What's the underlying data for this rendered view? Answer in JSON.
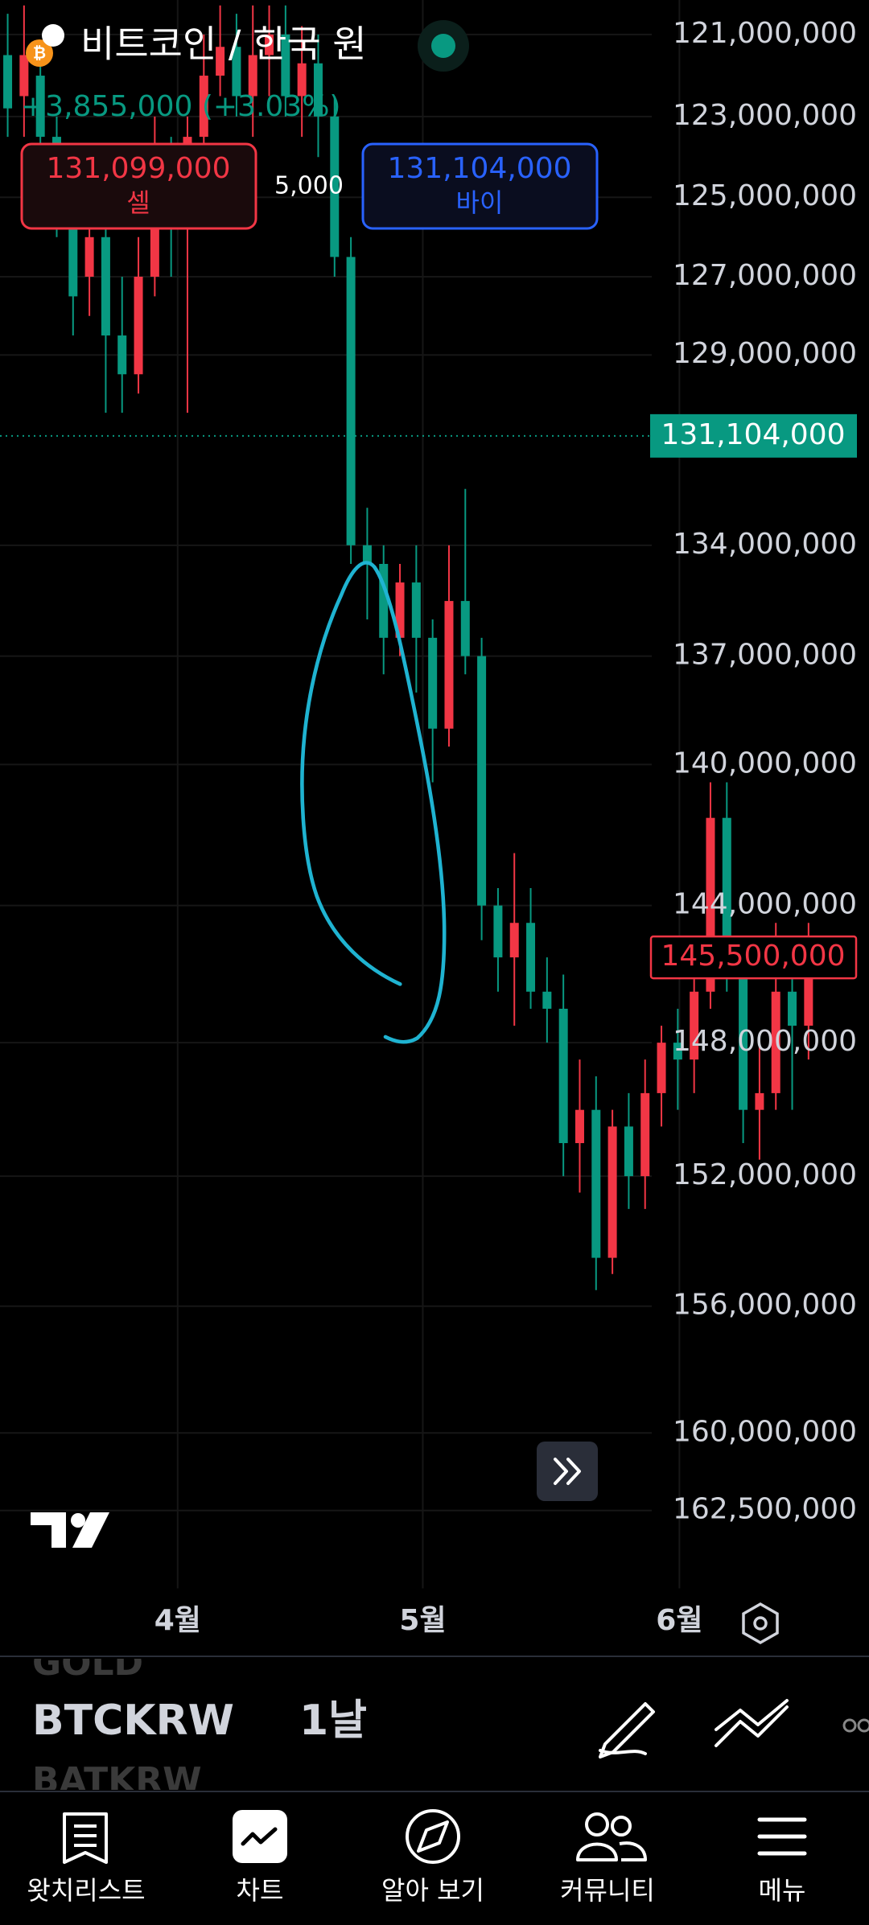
{
  "header": {
    "title": "비트코인 / 한국 원",
    "change": "+3,855,000 (+3.03%)"
  },
  "quote": {
    "sell_price": "131,099,000",
    "sell_label": "셀",
    "spread": "5,000",
    "buy_price": "131,104,000",
    "buy_label": "바이"
  },
  "chart_data": {
    "type": "candlestick",
    "yscale": "log",
    "inverted": true,
    "grid": true,
    "up_color": "#089981",
    "down_color": "#f23645",
    "candles": [
      {
        "open": 121500000,
        "high": 123500000,
        "low": 120500000,
        "close": 122800000
      },
      {
        "open": 122500000,
        "high": 123500000,
        "low": 120300000,
        "close": 121500000
      },
      {
        "open": 122000000,
        "high": 124000000,
        "low": 121500000,
        "close": 123500000
      },
      {
        "open": 123500000,
        "high": 126000000,
        "low": 123000000,
        "close": 125500000
      },
      {
        "open": 125500000,
        "high": 128500000,
        "low": 125000000,
        "close": 127500000
      },
      {
        "open": 127000000,
        "high": 128000000,
        "low": 125500000,
        "close": 126000000
      },
      {
        "open": 126000000,
        "high": 130500000,
        "low": 125500000,
        "close": 128500000
      },
      {
        "open": 128500000,
        "high": 130500000,
        "low": 127000000,
        "close": 129500000
      },
      {
        "open": 129500000,
        "high": 130000000,
        "low": 126000000,
        "close": 127000000
      },
      {
        "open": 127000000,
        "high": 127500000,
        "low": 123000000,
        "close": 124500000
      },
      {
        "open": 124500000,
        "high": 127000000,
        "low": 123500000,
        "close": 125500000
      },
      {
        "open": 125500000,
        "high": 130500000,
        "low": 123000000,
        "close": 123500000
      },
      {
        "open": 123500000,
        "high": 124000000,
        "low": 121000000,
        "close": 122000000
      },
      {
        "open": 122000000,
        "high": 122500000,
        "low": 120300000,
        "close": 121300000
      },
      {
        "open": 121300000,
        "high": 123000000,
        "low": 120500000,
        "close": 122500000
      },
      {
        "open": 122500000,
        "high": 123500000,
        "low": 120300000,
        "close": 121500000
      },
      {
        "open": 121500000,
        "high": 122500000,
        "low": 120300000,
        "close": 121000000
      },
      {
        "open": 121000000,
        "high": 123000000,
        "low": 120300000,
        "close": 122500000
      },
      {
        "open": 122500000,
        "high": 123500000,
        "low": 120800000,
        "close": 121700000
      },
      {
        "open": 121700000,
        "high": 124000000,
        "low": 121000000,
        "close": 123000000
      },
      {
        "open": 123000000,
        "high": 127000000,
        "low": 122500000,
        "close": 126500000
      },
      {
        "open": 126500000,
        "high": 134500000,
        "low": 126000000,
        "close": 134000000
      },
      {
        "open": 134000000,
        "high": 136000000,
        "low": 133000000,
        "close": 134500000
      },
      {
        "open": 134500000,
        "high": 137500000,
        "low": 134000000,
        "close": 136500000
      },
      {
        "open": 136500000,
        "high": 137000000,
        "low": 134500000,
        "close": 135000000
      },
      {
        "open": 135000000,
        "high": 138000000,
        "low": 134000000,
        "close": 136500000
      },
      {
        "open": 136500000,
        "high": 140500000,
        "low": 136000000,
        "close": 139000000
      },
      {
        "open": 139000000,
        "high": 139500000,
        "low": 134000000,
        "close": 135500000
      },
      {
        "open": 135500000,
        "high": 137500000,
        "low": 132500000,
        "close": 137000000
      },
      {
        "open": 137000000,
        "high": 145000000,
        "low": 136500000,
        "close": 144000000
      },
      {
        "open": 144000000,
        "high": 146500000,
        "low": 143500000,
        "close": 145500000
      },
      {
        "open": 145500000,
        "high": 147500000,
        "low": 142500000,
        "close": 144500000
      },
      {
        "open": 144500000,
        "high": 147000000,
        "low": 143500000,
        "close": 146500000
      },
      {
        "open": 146500000,
        "high": 148000000,
        "low": 145500000,
        "close": 147000000
      },
      {
        "open": 147000000,
        "high": 152000000,
        "low": 146000000,
        "close": 151000000
      },
      {
        "open": 151000000,
        "high": 152500000,
        "low": 148500000,
        "close": 150000000
      },
      {
        "open": 150000000,
        "high": 155500000,
        "low": 149000000,
        "close": 154500000
      },
      {
        "open": 154500000,
        "high": 155000000,
        "low": 150000000,
        "close": 150500000
      },
      {
        "open": 150500000,
        "high": 153000000,
        "low": 149500000,
        "close": 152000000
      },
      {
        "open": 152000000,
        "high": 153000000,
        "low": 148500000,
        "close": 149500000
      },
      {
        "open": 149500000,
        "high": 150500000,
        "low": 147500000,
        "close": 148000000
      },
      {
        "open": 148000000,
        "high": 150000000,
        "low": 147000000,
        "close": 148500000
      },
      {
        "open": 148500000,
        "high": 149500000,
        "low": 146000000,
        "close": 146500000
      },
      {
        "open": 146500000,
        "high": 147000000,
        "low": 140500000,
        "close": 141500000
      },
      {
        "open": 141500000,
        "high": 146500000,
        "low": 140500000,
        "close": 145500000
      },
      {
        "open": 145500000,
        "high": 151000000,
        "low": 145000000,
        "close": 150000000
      },
      {
        "open": 150000000,
        "high": 151500000,
        "low": 148000000,
        "close": 149500000
      },
      {
        "open": 149500000,
        "high": 150000000,
        "low": 144500000,
        "close": 146500000
      },
      {
        "open": 146500000,
        "high": 150000000,
        "low": 146000000,
        "close": 147500000
      },
      {
        "open": 147500000,
        "high": 148500000,
        "low": 144500000,
        "close": 145500000
      }
    ],
    "xlim": [
      -0.47,
      52.7
    ],
    "xticks": [
      {
        "value": 10.4,
        "label": "4월"
      },
      {
        "value": 25.4,
        "label": "5월"
      },
      {
        "value": 41.1,
        "label": "6월"
      }
    ],
    "ylim": [
      120170000,
      165060000
    ],
    "yticks": [
      {
        "value": 121000000,
        "label": "121,000,000"
      },
      {
        "value": 123000000,
        "label": "123,000,000"
      },
      {
        "value": 125000000,
        "label": "125,000,000"
      },
      {
        "value": 127000000,
        "label": "127,000,000"
      },
      {
        "value": 129000000,
        "label": "129,000,000"
      },
      {
        "value": 134000000,
        "label": "134,000,000"
      },
      {
        "value": 137000000,
        "label": "137,000,000"
      },
      {
        "value": 140000000,
        "label": "140,000,000"
      },
      {
        "value": 144000000,
        "label": "144,000,000"
      },
      {
        "value": 148000000,
        "label": "148,000,000"
      },
      {
        "value": 152000000,
        "label": "152,000,000"
      },
      {
        "value": 156000000,
        "label": "156,000,000"
      },
      {
        "value": 160000000,
        "label": "160,000,000"
      },
      {
        "value": 162500000,
        "label": "162,500,000"
      }
    ],
    "price_lines": [
      {
        "value": 131104000,
        "label": "131,104,000",
        "color": "#089981",
        "style": "filled"
      },
      {
        "value": 145500000,
        "label": "145,500,000",
        "color": "#f23645",
        "style": "outline"
      }
    ]
  },
  "symbols": [
    "GOLD",
    "BTCKRW",
    "BATKRW"
  ],
  "interval": "1날",
  "nav": [
    "왓치리스트",
    "차트",
    "알아 보기",
    "커뮤니티",
    "메뉴"
  ]
}
